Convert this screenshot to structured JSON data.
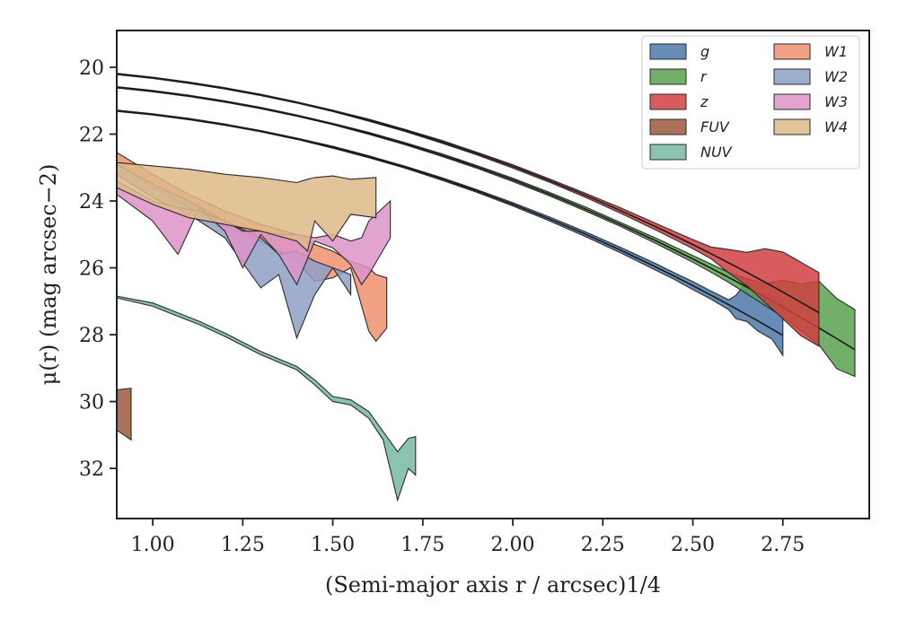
{
  "chart_data": {
    "type": "area",
    "xlabel": "(Semi-major axis r / arcsec)1/4",
    "ylabel": "μ(r) (mag arcsec−2)",
    "xlim": [
      0.9,
      2.99
    ],
    "ylim": [
      33.5,
      18.9
    ],
    "y_inverted": true,
    "grid": false,
    "legend_position": "top-right",
    "legend_columns": 2,
    "xticks": [
      1.0,
      1.25,
      1.5,
      1.75,
      2.0,
      2.25,
      2.5,
      2.75
    ],
    "xtick_labels": [
      "1.00",
      "1.25",
      "1.50",
      "1.75",
      "2.00",
      "2.25",
      "2.50",
      "2.75"
    ],
    "yticks": [
      20,
      22,
      24,
      26,
      28,
      30,
      32
    ],
    "ytick_labels": [
      "20",
      "22",
      "24",
      "26",
      "28",
      "30",
      "32"
    ],
    "series": [
      {
        "name": "g",
        "color": "#4c78a8",
        "model_y0": 21.3,
        "model_a": 1.45,
        "model_b": 0.95,
        "x": [
          0.9,
          1.0,
          1.1,
          1.2,
          1.3,
          1.4,
          1.5,
          1.6,
          1.7,
          1.8,
          1.9,
          2.0,
          2.1,
          2.2,
          2.3,
          2.4,
          2.45,
          2.5,
          2.55,
          2.6,
          2.62,
          2.65,
          2.68,
          2.72,
          2.75
        ],
        "band_low": [
          0.02,
          0.02,
          0.02,
          0.02,
          0.02,
          0.02,
          0.03,
          0.03,
          0.03,
          0.04,
          0.04,
          0.05,
          0.06,
          0.07,
          0.08,
          0.1,
          0.1,
          0.12,
          0.12,
          0.15,
          0.3,
          0.2,
          0.3,
          0.3,
          0.6
        ],
        "band_high": [
          0.02,
          0.02,
          0.02,
          0.02,
          0.02,
          0.02,
          0.03,
          0.03,
          0.03,
          0.04,
          0.04,
          0.05,
          0.06,
          0.07,
          0.08,
          0.1,
          0.1,
          0.12,
          0.12,
          0.15,
          0.4,
          1.0,
          0.8,
          1.0,
          1.1
        ]
      },
      {
        "name": "r",
        "color": "#59a14f",
        "model_y0": 20.6,
        "model_a": 1.38,
        "model_b": 1.0,
        "x": [
          0.9,
          1.0,
          1.1,
          1.2,
          1.3,
          1.4,
          1.5,
          1.6,
          1.7,
          1.8,
          1.9,
          2.0,
          2.1,
          2.2,
          2.3,
          2.4,
          2.5,
          2.55,
          2.6,
          2.65,
          2.7,
          2.75,
          2.8,
          2.85,
          2.9,
          2.95
        ],
        "band_low": [
          0.02,
          0.02,
          0.02,
          0.02,
          0.02,
          0.02,
          0.02,
          0.03,
          0.03,
          0.04,
          0.04,
          0.05,
          0.05,
          0.06,
          0.06,
          0.08,
          0.1,
          0.12,
          0.15,
          0.2,
          0.25,
          0.3,
          0.4,
          0.5,
          0.9,
          0.8
        ],
        "band_high": [
          0.02,
          0.02,
          0.02,
          0.02,
          0.02,
          0.02,
          0.02,
          0.03,
          0.03,
          0.04,
          0.04,
          0.05,
          0.05,
          0.06,
          0.06,
          0.08,
          0.1,
          0.12,
          0.15,
          0.25,
          0.4,
          0.8,
          1.0,
          1.4,
          1.2,
          1.2
        ]
      },
      {
        "name": "z",
        "color": "#d13f42",
        "model_y0": 20.2,
        "model_a": 1.35,
        "model_b": 1.03,
        "x": [
          0.9,
          1.0,
          1.1,
          1.2,
          1.3,
          1.4,
          1.5,
          1.6,
          1.7,
          1.8,
          1.9,
          2.0,
          2.1,
          2.2,
          2.3,
          2.4,
          2.5,
          2.55,
          2.6,
          2.65,
          2.7,
          2.75,
          2.8,
          2.85
        ],
        "band_low": [
          0.02,
          0.02,
          0.02,
          0.02,
          0.02,
          0.02,
          0.02,
          0.03,
          0.03,
          0.04,
          0.04,
          0.05,
          0.05,
          0.06,
          0.08,
          0.1,
          0.12,
          0.15,
          0.3,
          0.4,
          0.6,
          0.8,
          1.0,
          1.0
        ],
        "band_high": [
          0.02,
          0.02,
          0.02,
          0.02,
          0.02,
          0.02,
          0.02,
          0.03,
          0.03,
          0.04,
          0.04,
          0.05,
          0.05,
          0.06,
          0.08,
          0.1,
          0.15,
          0.2,
          0.4,
          0.6,
          1.0,
          1.2,
          1.2,
          1.2
        ]
      },
      {
        "name": "FUV",
        "color": "#9b5a3c",
        "x": [
          0.9,
          0.94
        ],
        "y_upper": [
          29.65,
          29.6
        ],
        "y_lower": [
          30.85,
          31.15
        ]
      },
      {
        "name": "NUV",
        "color": "#76b9a0",
        "x": [
          0.9,
          1.0,
          1.07,
          1.13,
          1.2,
          1.3,
          1.4,
          1.45,
          1.5,
          1.55,
          1.6,
          1.64,
          1.68,
          1.71,
          1.73
        ],
        "y_upper": [
          26.85,
          27.05,
          27.35,
          27.6,
          27.95,
          28.5,
          28.95,
          29.35,
          29.85,
          29.95,
          30.3,
          30.9,
          31.5,
          31.1,
          31.05
        ],
        "y_lower": [
          26.9,
          27.15,
          27.45,
          27.7,
          28.05,
          28.6,
          29.05,
          29.5,
          30.0,
          30.1,
          30.5,
          31.15,
          32.95,
          32.0,
          32.2
        ]
      },
      {
        "name": "W1",
        "color": "#f0916e",
        "x": [
          0.9,
          1.0,
          1.1,
          1.2,
          1.3,
          1.4,
          1.45,
          1.5,
          1.55,
          1.6,
          1.62,
          1.65
        ],
        "y_upper": [
          22.55,
          23.2,
          23.8,
          24.3,
          24.7,
          25.0,
          25.3,
          25.5,
          25.8,
          26.0,
          26.2,
          26.3
        ],
        "y_lower": [
          22.9,
          23.6,
          24.2,
          24.8,
          25.2,
          25.8,
          26.4,
          26.3,
          26.0,
          27.9,
          28.2,
          27.8
        ]
      },
      {
        "name": "W2",
        "color": "#8fa0c4",
        "x": [
          0.9,
          1.0,
          1.1,
          1.2,
          1.3,
          1.35,
          1.4,
          1.45,
          1.5,
          1.55
        ],
        "y_upper": [
          22.9,
          23.5,
          24.0,
          24.6,
          25.1,
          25.6,
          25.5,
          25.8,
          26.0,
          26.2
        ],
        "y_lower": [
          23.2,
          23.9,
          24.4,
          25.1,
          26.6,
          26.2,
          28.1,
          26.8,
          26.0,
          26.8
        ]
      },
      {
        "name": "W3",
        "color": "#dd93c8",
        "x": [
          0.9,
          1.0,
          1.07,
          1.13,
          1.2,
          1.25,
          1.3,
          1.35,
          1.4,
          1.45,
          1.5,
          1.55,
          1.58,
          1.6,
          1.66
        ],
        "y_upper": [
          23.4,
          24.0,
          24.2,
          24.3,
          24.6,
          24.9,
          24.9,
          25.0,
          25.0,
          25.1,
          25.0,
          25.2,
          25.1,
          24.6,
          24.0
        ],
        "y_lower": [
          23.8,
          24.6,
          25.6,
          24.2,
          24.9,
          26.0,
          25.0,
          25.6,
          26.5,
          25.2,
          25.4,
          25.9,
          26.5,
          26.2,
          25.1
        ]
      },
      {
        "name": "W4",
        "color": "#deb887",
        "x": [
          0.9,
          1.0,
          1.1,
          1.2,
          1.3,
          1.4,
          1.43,
          1.45,
          1.5,
          1.55,
          1.62
        ],
        "y_upper": [
          22.85,
          22.95,
          23.05,
          23.2,
          23.3,
          23.45,
          23.35,
          23.3,
          23.25,
          23.35,
          23.3
        ],
        "y_lower": [
          23.6,
          24.1,
          24.5,
          24.7,
          24.9,
          25.2,
          25.5,
          24.6,
          25.2,
          24.4,
          24.5
        ]
      }
    ]
  }
}
